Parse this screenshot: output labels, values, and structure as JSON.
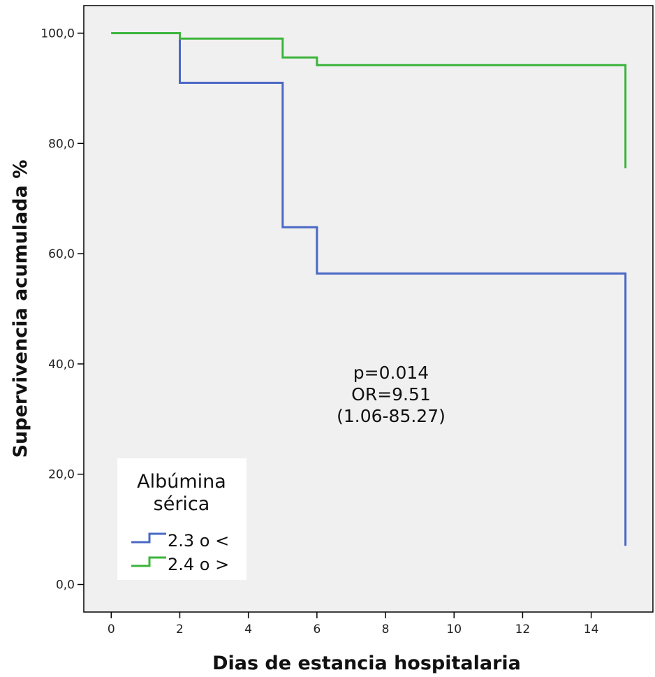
{
  "chart_data": {
    "type": "line",
    "title": "",
    "xlabel": "Dias de estancia hospitalaria",
    "ylabel": "Supervivencia acumulada %",
    "xlim": [
      -0.8,
      15.8
    ],
    "ylim": [
      -5,
      105
    ],
    "x_ticks": [
      0,
      2,
      4,
      6,
      8,
      10,
      12,
      14
    ],
    "x_tick_labels": [
      "0",
      "2",
      "4",
      "6",
      "8",
      "10",
      "12",
      "14"
    ],
    "y_ticks": [
      0,
      20,
      40,
      60,
      80,
      100
    ],
    "y_tick_labels": [
      "0,0",
      "20,0",
      "40,0",
      "60,0",
      "80,0",
      "100,0"
    ],
    "grid": false,
    "legend_placement": "bottom-left",
    "legend_title": [
      "Albúmina",
      "sérica"
    ],
    "annotation": [
      "p=0.014",
      "OR=9.51",
      "(1.06-85.27)"
    ],
    "series": [
      {
        "name": "2.3 o <",
        "color": "#4a68c4",
        "x": [
          0,
          2,
          2,
          5,
          5,
          6,
          6,
          15,
          15
        ],
        "y": [
          100,
          100,
          91,
          91,
          64.8,
          64.8,
          56.4,
          56.4,
          7
        ]
      },
      {
        "name": "2.4 o >",
        "color": "#3cb43c",
        "x": [
          0,
          2,
          2,
          5,
          5,
          6,
          6,
          15,
          15
        ],
        "y": [
          100,
          100,
          99,
          99,
          95.6,
          95.6,
          94.2,
          94.2,
          75.5
        ]
      }
    ]
  }
}
